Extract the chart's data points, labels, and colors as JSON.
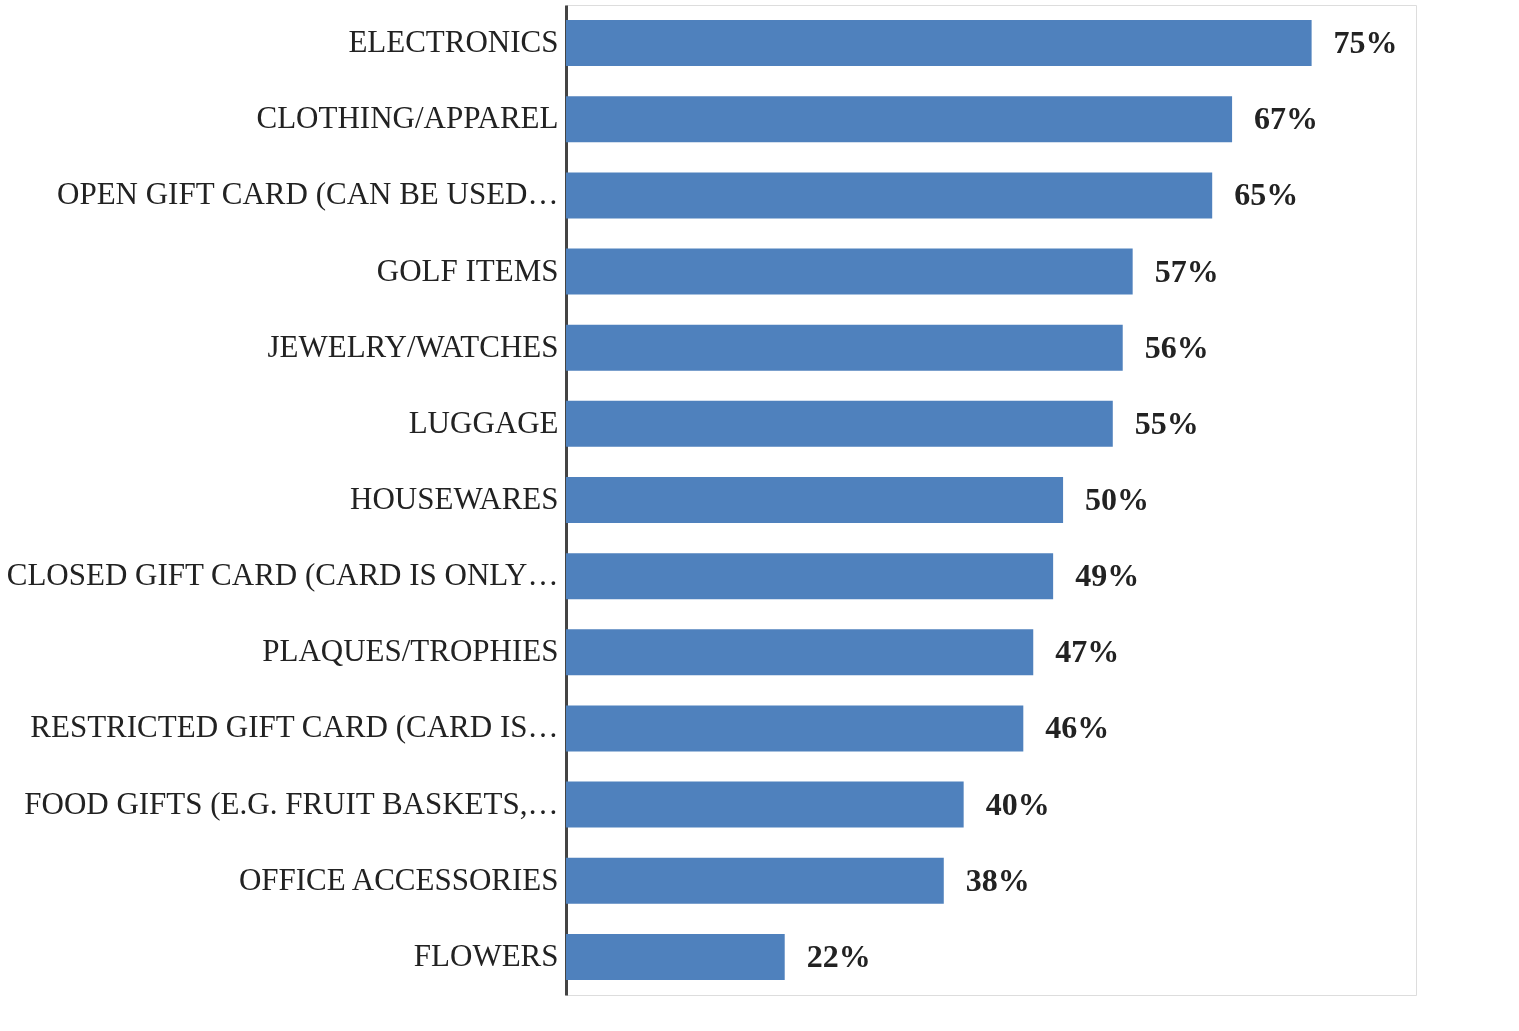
{
  "chart_data": {
    "type": "bar",
    "orientation": "horizontal",
    "categories": [
      "ELECTRONICS",
      "CLOTHING/APPAREL",
      "OPEN GIFT CARD (CAN BE USED…",
      "GOLF ITEMS",
      "JEWELRY/WATCHES",
      "LUGGAGE",
      "HOUSEWARES",
      "CLOSED GIFT CARD (CARD IS ONLY…",
      "PLAQUES/TROPHIES",
      "RESTRICTED GIFT CARD (CARD IS…",
      "FOOD GIFTS (E.G. FRUIT BASKETS,…",
      "OFFICE ACCESSORIES",
      "FLOWERS"
    ],
    "values": [
      75,
      67,
      65,
      57,
      56,
      55,
      50,
      49,
      47,
      46,
      40,
      38,
      22
    ],
    "value_labels": [
      "75%",
      "67%",
      "65%",
      "57%",
      "56%",
      "55%",
      "50%",
      "49%",
      "47%",
      "46%",
      "40%",
      "38%",
      "22%"
    ],
    "color": "#4f81bd"
  }
}
